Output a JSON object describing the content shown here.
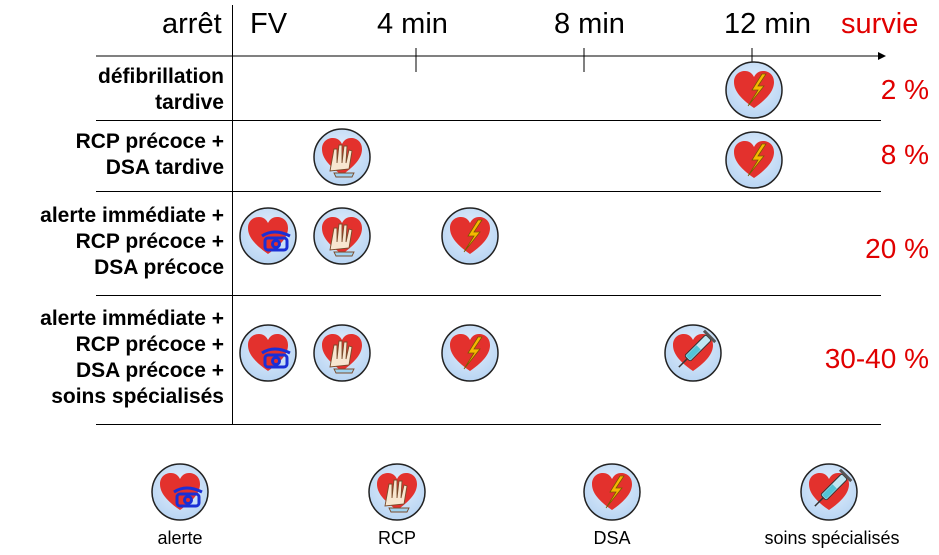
{
  "header": {
    "arret": "arrêt",
    "fv": "FV",
    "t4": "4 min",
    "t8": "8 min",
    "t12": "12 min",
    "survie": "survie"
  },
  "rows": [
    {
      "label": "défibrillation\ntardive",
      "survie": "2 %",
      "icons": [
        "dsa-icon"
      ]
    },
    {
      "label": "RCP précoce +\nDSA tardive",
      "survie": "8 %",
      "icons": [
        "rcp-icon",
        "dsa-icon"
      ]
    },
    {
      "label": "alerte immédiate +\nRCP précoce +\nDSA précoce",
      "survie": "20 %",
      "icons": [
        "alerte-icon",
        "rcp-icon",
        "dsa-icon"
      ]
    },
    {
      "label": "alerte immédiate +\nRCP précoce +\nDSA précoce +\nsoins spécialisés",
      "survie": "30-40 %",
      "icons": [
        "alerte-icon",
        "rcp-icon",
        "dsa-icon",
        "soins-icon"
      ]
    }
  ],
  "legend": {
    "alerte": "alerte",
    "rcp": "RCP",
    "dsa": "DSA",
    "soins": "soins spécialisés"
  },
  "colors": {
    "accent_red": "#e00000",
    "circle_fill": "#cfe2f7",
    "heart": "#e3312d",
    "phone": "#1a2fd6",
    "bolt": "#f6b800"
  }
}
